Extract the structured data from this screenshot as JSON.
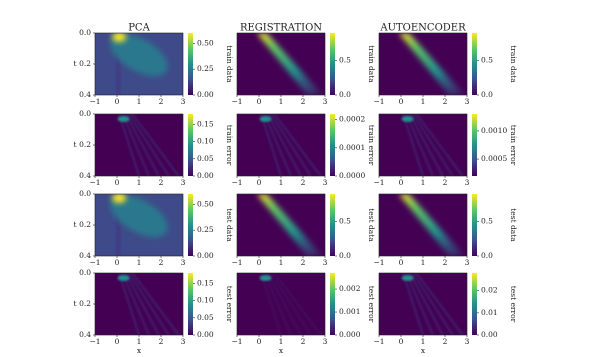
{
  "columns": [
    "PCA",
    "REGISTRATION",
    "AUTOENCODER"
  ],
  "x_label": "x",
  "y_label": "t",
  "xlim": [
    -1,
    3
  ],
  "xticks": [
    {
      "value": -1,
      "label": "−1"
    },
    0,
    1,
    2,
    3
  ],
  "ylim": [
    0,
    0.4
  ],
  "yticks": [
    {
      "value": 0,
      "label": "0.0"
    },
    {
      "value": 0.2,
      "label": "0.2"
    },
    {
      "value": 0.4,
      "label": "0.4"
    }
  ],
  "panels": [
    {
      "colorbar_label": "train data",
      "clim": [
        0,
        0.6
      ],
      "cticks": [
        {
          "value": 0,
          "label": "0.00"
        },
        {
          "value": 0.25,
          "label": "0.25"
        },
        {
          "value": 0.5,
          "label": "0.50"
        }
      ]
    },
    {
      "colorbar_label": "train data",
      "clim": [
        0,
        0.9
      ],
      "cticks": [
        {
          "value": 0,
          "label": "0.0"
        },
        {
          "value": 0.5,
          "label": "0.5"
        }
      ]
    },
    {
      "colorbar_label": "train data",
      "clim": [
        0,
        0.9
      ],
      "cticks": [
        {
          "value": 0,
          "label": "0.0"
        },
        {
          "value": 0.5,
          "label": "0.5"
        }
      ]
    },
    {
      "colorbar_label": "train error",
      "clim": [
        0,
        0.18
      ],
      "cticks": [
        {
          "value": 0,
          "label": "0.00"
        },
        {
          "value": 0.05,
          "label": "0.05"
        },
        {
          "value": 0.1,
          "label": "0.10"
        },
        {
          "value": 0.15,
          "label": "0.15"
        }
      ]
    },
    {
      "colorbar_label": "train error",
      "clim": [
        0,
        0.00022
      ],
      "cticks": [
        {
          "value": 0,
          "label": "0.0000"
        },
        {
          "value": 0.0001,
          "label": "0.0001"
        },
        {
          "value": 0.0002,
          "label": "0.0002"
        }
      ]
    },
    {
      "colorbar_label": "train error",
      "clim": [
        0.0002,
        0.0013
      ],
      "cticks": [
        {
          "value": 0.0005,
          "label": "0.0005"
        },
        {
          "value": 0.001,
          "label": "0.0010"
        }
      ]
    },
    {
      "colorbar_label": "test data",
      "clim": [
        0,
        0.6
      ],
      "cticks": [
        {
          "value": 0,
          "label": "0.00"
        },
        {
          "value": 0.25,
          "label": "0.25"
        },
        {
          "value": 0.5,
          "label": "0.50"
        }
      ]
    },
    {
      "colorbar_label": "test data",
      "clim": [
        0,
        0.9
      ],
      "cticks": [
        {
          "value": 0,
          "label": "0.0"
        },
        {
          "value": 0.5,
          "label": "0.5"
        }
      ]
    },
    {
      "colorbar_label": "test data",
      "clim": [
        0,
        0.9
      ],
      "cticks": [
        {
          "value": 0,
          "label": "0.0"
        },
        {
          "value": 0.5,
          "label": "0.5"
        }
      ]
    },
    {
      "colorbar_label": "test error",
      "clim": [
        0,
        0.18
      ],
      "cticks": [
        {
          "value": 0,
          "label": "0.00"
        },
        {
          "value": 0.05,
          "label": "0.05"
        },
        {
          "value": 0.1,
          "label": "0.10"
        },
        {
          "value": 0.15,
          "label": "0.15"
        }
      ]
    },
    {
      "colorbar_label": "test error",
      "clim": [
        0,
        0.0027
      ],
      "cticks": [
        {
          "value": 0,
          "label": "0.000"
        },
        {
          "value": 0.001,
          "label": "0.001"
        },
        {
          "value": 0.002,
          "label": "0.002"
        }
      ]
    },
    {
      "colorbar_label": "test error",
      "clim": [
        0,
        0.028
      ],
      "cticks": [
        {
          "value": 0,
          "label": "0.00"
        },
        {
          "value": 0.01,
          "label": "0.01"
        },
        {
          "value": 0.02,
          "label": "0.02"
        }
      ]
    }
  ]
}
